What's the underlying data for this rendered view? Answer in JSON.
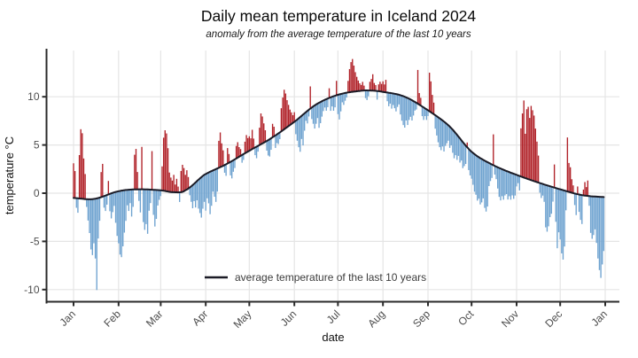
{
  "chart_data": {
    "type": "bar",
    "title": "Daily mean temperature in Iceland 2024",
    "subtitle": "anomaly from the average temperature of the last 10 years",
    "x": {
      "label": "date",
      "tick_labels": [
        "Jan",
        "Feb",
        "Mar",
        "Apr",
        "May",
        "Jun",
        "Jul",
        "Aug",
        "Sep",
        "Oct",
        "Nov",
        "Dec",
        "Jan"
      ]
    },
    "y": {
      "label": "temperature °C",
      "ticks": [
        10,
        5,
        0,
        -5,
        -10
      ],
      "range": [
        -11.3,
        14.8
      ]
    },
    "grid": true,
    "legend": {
      "position": "inside-bottom-left",
      "items": [
        {
          "label": "average temperature of the last 10 years",
          "type": "line"
        }
      ]
    },
    "colors": {
      "anomaly_above": "#b02128",
      "anomaly_below": "#6fa3d0",
      "average_line": "#1b1b26",
      "grid": "#e5e5e5",
      "axis": "#2b2b2b",
      "tick_text": "#4d4d4d"
    },
    "month_days": [
      31,
      29,
      31,
      30,
      31,
      30,
      31,
      31,
      30,
      31,
      30,
      31
    ],
    "average_curve": {
      "name": "average temperature of the last 10 years",
      "anchors_day_value": [
        [
          1,
          -0.5
        ],
        [
          15,
          -0.6
        ],
        [
          32,
          0.2
        ],
        [
          46,
          0.4
        ],
        [
          61,
          0.3
        ],
        [
          70,
          0.1
        ],
        [
          78,
          0.3
        ],
        [
          91,
          1.9
        ],
        [
          106,
          3.0
        ],
        [
          122,
          4.4
        ],
        [
          137,
          5.7
        ],
        [
          153,
          7.4
        ],
        [
          168,
          9.2
        ],
        [
          183,
          10.2
        ],
        [
          198,
          10.6
        ],
        [
          205,
          10.65
        ],
        [
          214,
          10.5
        ],
        [
          229,
          10.0
        ],
        [
          245,
          8.6
        ],
        [
          260,
          6.9
        ],
        [
          275,
          4.3
        ],
        [
          290,
          2.9
        ],
        [
          306,
          1.9
        ],
        [
          321,
          1.1
        ],
        [
          336,
          0.4
        ],
        [
          351,
          -0.2
        ],
        [
          366,
          -0.4
        ]
      ]
    },
    "daily_anomalies": [
      3.6,
      2.8,
      -1.0,
      -1.5,
      4.5,
      7.2,
      6.8,
      4.2,
      2.6,
      -0.8,
      -2.2,
      -3.5,
      -5.2,
      -5.8,
      -4.6,
      -6.2,
      -9.5,
      -4.2,
      -2.4,
      2.6,
      3.4,
      -1.2,
      -1.6,
      -1.0,
      1.4,
      -1.8,
      -2.6,
      -2.0,
      -1.4,
      -3.2,
      -4.6,
      -5.4,
      -6.6,
      -6.9,
      -5.8,
      -4.4,
      -3.2,
      -1.6,
      -2.2,
      -1.4,
      -2.8,
      -1.8,
      3.6,
      4.2,
      1.8,
      -1.2,
      -2.4,
      4.4,
      -3.4,
      -4.2,
      -3.6,
      -4.6,
      -2.2,
      -1.4,
      4.0,
      -2.6,
      -3.8,
      -3.0,
      -1.6,
      -1.0,
      -0.6,
      2.5,
      5.5,
      6.3,
      6.0,
      4.5,
      2.0,
      1.5,
      1.2,
      1.8,
      0.8,
      1.4,
      0.6,
      -1.0,
      2.2,
      2.8,
      2.4,
      1.6,
      2.0,
      1.2,
      -0.8,
      -1.6,
      -2.4,
      -1.8,
      -2.6,
      -2.0,
      -3.0,
      -3.6,
      -4.2,
      -3.4,
      -2.8,
      -3.8,
      -2.6,
      -3.2,
      -4.4,
      -3.6,
      -2.2,
      -2.8,
      -3.4,
      -2.4,
      2.8,
      3.6,
      2.4,
      1.6,
      -0.8,
      -1.2,
      1.6,
      0.9,
      -1.4,
      -1.8,
      -1.2,
      -0.9,
      1.3,
      1.6,
      1.0,
      0.7,
      -0.8,
      -0.6,
      1.2,
      1.8,
      1.4,
      1.5,
      1.2,
      2.0,
      1.0,
      -0.8,
      -1.2,
      -0.6,
      1.8,
      3.2,
      2.8,
      2.0,
      1.2,
      -1.0,
      -1.6,
      -1.8,
      -1.2,
      1.4,
      1.0,
      -1.3,
      -0.9,
      -1.1,
      -0.7,
      2.4,
      3.4,
      4.1,
      3.6,
      2.8,
      2.2,
      1.6,
      1.2,
      0.8,
      1.0,
      -1.4,
      -2.2,
      -3.0,
      -3.6,
      -2.4,
      -3.2,
      -1.8,
      -0.9,
      -1.3,
      -0.7,
      2.3,
      -1.2,
      -1.8,
      -2.4,
      -2.0,
      -1.5,
      -2.6,
      -2.2,
      -1.6,
      -1.1,
      -0.8,
      -1.2,
      -0.9,
      1.0,
      -1.4,
      -1.0,
      -1.5,
      -1.2,
      1.5,
      -2.0,
      -2.6,
      -1.8,
      -0.9,
      -1.2,
      -0.8,
      -0.5,
      1.2,
      2.4,
      3.1,
      3.4,
      2.7,
      2.0,
      1.5,
      1.1,
      0.8,
      0.6,
      0.9,
      0.5,
      -0.8,
      -1.0,
      -0.6,
      0.9,
      1.2,
      1.7,
      0.8,
      0.6,
      -0.9,
      0.7,
      1.0,
      0.8,
      1.1,
      0.8,
      1.3,
      -0.9,
      -1.4,
      -1.1,
      -1.6,
      -1.2,
      -1.5,
      -1.8,
      -1.3,
      -1.0,
      -2.0,
      -2.6,
      -3.0,
      -3.2,
      -2.4,
      -2.8,
      -2.2,
      -1.8,
      -2.1,
      -1.5,
      -0.9,
      -0.7,
      3.5,
      1.2,
      0.8,
      -1.0,
      -1.3,
      -0.8,
      -1.1,
      -0.6,
      4.0,
      3.2,
      1.9,
      1.2,
      -1.4,
      -2.0,
      -2.6,
      -3.0,
      -3.2,
      -2.7,
      -3.1,
      -2.4,
      -2.0,
      -1.6,
      -2.2,
      -1.8,
      -2.4,
      -2.8,
      -2.3,
      -2.6,
      -2.0,
      -2.5,
      -2.1,
      -2.7,
      -2.3,
      -1.9,
      0.5,
      -2.2,
      -2.6,
      -2.8,
      -3.3,
      -3.9,
      -4.1,
      -4.6,
      -4.3,
      -4.8,
      -4.5,
      -4.0,
      -4.9,
      -5.2,
      -4.6,
      -2.4,
      -1.8,
      -1.4,
      3.2,
      -0.9,
      -1.3,
      -2.2,
      -3.0,
      -3.3,
      -2.8,
      -3.1,
      -2.6,
      -2.4,
      -2.9,
      -2.5,
      -2.8,
      -2.3,
      -2.6,
      -2.2,
      -1.2,
      -0.8,
      -1.5,
      5.0,
      6.6,
      8.0,
      4.6,
      7.2,
      7.5,
      6.4,
      7.7,
      7.3,
      6.8,
      5.5,
      4.2,
      2.8,
      -1.0,
      -1.5,
      -1.2,
      -1.8,
      -4.4,
      -4.8,
      -4.2,
      -3.2,
      -2.8,
      -1.5,
      2.4,
      -3.5,
      -6.2,
      -4.5,
      -5.2,
      -6.6,
      -7.2,
      -5.8,
      -2.0,
      5.6,
      3.0,
      2.6,
      1.4,
      0.8,
      -1.2,
      -2.2,
      0.8,
      -1.8,
      -2.6,
      -3.0,
      0.6,
      1.4,
      0.9,
      1.6,
      -1.0,
      -3.8,
      -4.4,
      -4.0,
      -3.4,
      -4.8,
      -6.4,
      -7.6,
      -8.4,
      -7.0,
      -5.6
    ]
  }
}
